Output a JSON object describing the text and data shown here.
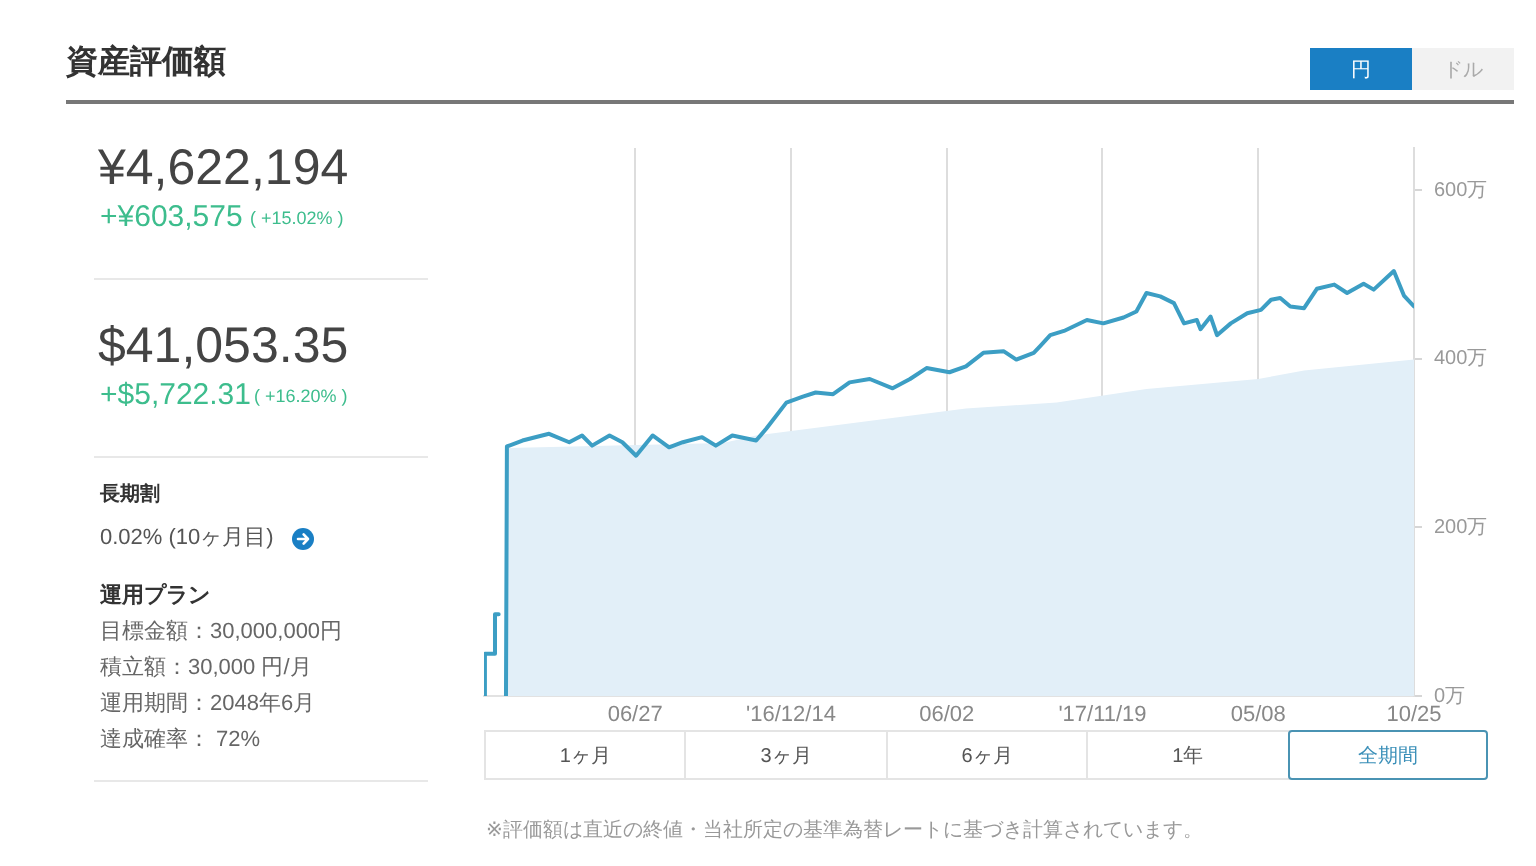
{
  "chart_data": {
    "type": "line",
    "title": "資産評価額",
    "xlim": [
      "2016-01-14",
      "2018-10-25"
    ],
    "xticks": [
      {
        "value": "2016-06-27",
        "label": "06/27"
      },
      {
        "value": "2016-12-14",
        "label": "'16/12/14"
      },
      {
        "value": "2017-06-02",
        "label": "06/02"
      },
      {
        "value": "2017-11-19",
        "label": "'17/11/19"
      },
      {
        "value": "2018-05-08",
        "label": "05/08"
      },
      {
        "value": "2018-10-25",
        "label": "10/25"
      }
    ],
    "ylim": [
      0,
      650
    ],
    "yticks": [
      {
        "value": 0,
        "label": "0万"
      },
      {
        "value": 200,
        "label": "200万"
      },
      {
        "value": 400,
        "label": "400万"
      },
      {
        "value": 600,
        "label": "600万"
      }
    ],
    "grid": "x",
    "series": [
      {
        "type": "area",
        "color": "#e2eff8",
        "x": [
          "2016-02-07",
          "2016-10-01",
          "2016-11-06",
          "2017-06-23",
          "2017-09-30",
          "2018-01-06",
          "2018-05-08",
          "2018-06-27",
          "2018-10-25"
        ],
        "values": [
          294,
          300,
          309,
          341,
          348,
          364,
          376,
          386,
          399
        ]
      },
      {
        "color": "#3c9ec4",
        "x": [
          "2016-01-14",
          "2016-01-15",
          "2016-01-25",
          "2016-01-26",
          "2016-01-30",
          "2016-02-03",
          "2016-02-07",
          "2016-02-08",
          "2016-02-25",
          "2016-03-25",
          "2016-04-16",
          "2016-04-30",
          "2016-05-11",
          "2016-05-30",
          "2016-06-13",
          "2016-06-28",
          "2016-07-16",
          "2016-08-03",
          "2016-08-18",
          "2016-09-08",
          "2016-09-23",
          "2016-10-11",
          "2016-11-06",
          "2016-11-17",
          "2016-12-09",
          "2016-12-27",
          "2017-01-10",
          "2017-01-29",
          "2017-02-16",
          "2017-03-10",
          "2017-04-04",
          "2017-04-23",
          "2017-05-11",
          "2017-06-05",
          "2017-06-23",
          "2017-07-12",
          "2017-08-03",
          "2017-08-17",
          "2017-09-05",
          "2017-09-12",
          "2017-09-23",
          "2017-10-08",
          "2017-11-02",
          "2017-11-20",
          "2017-12-12",
          "2017-12-26",
          "2018-01-06",
          "2018-01-21",
          "2018-02-05",
          "2018-02-16",
          "2018-03-02",
          "2018-03-06",
          "2018-03-17",
          "2018-03-24",
          "2018-04-08",
          "2018-04-26",
          "2018-05-11",
          "2018-05-22",
          "2018-06-01",
          "2018-06-12",
          "2018-06-27",
          "2018-07-11",
          "2018-07-30",
          "2018-08-13",
          "2018-08-31",
          "2018-09-11",
          "2018-10-03",
          "2018-10-14",
          "2018-10-25"
        ],
        "values": [
          0,
          50,
          50,
          97,
          97,
          null,
          0,
          296,
          303,
          311,
          301,
          309,
          297,
          309,
          301,
          285,
          309,
          295,
          301,
          307,
          297,
          309,
          303,
          317,
          348,
          355,
          360,
          358,
          372,
          376,
          365,
          376,
          389,
          384,
          391,
          407,
          409,
          399,
          407,
          415,
          428,
          433,
          446,
          442,
          449,
          456,
          478,
          474,
          466,
          442,
          446,
          435,
          450,
          428,
          442,
          454,
          458,
          470,
          472,
          462,
          460,
          483,
          488,
          478,
          489,
          482,
          504,
          475,
          462
        ]
      }
    ],
    "annotations": [
      "¥4,622,194",
      "+¥603,575",
      "( +15.02% )",
      "$41,053.35",
      "+$5,722.31",
      "( +16.20% )",
      "長期割",
      "0.02% (10ヶ月目)",
      "運用プラン",
      "目標金額：30,000,000円",
      "積立額：30,000 円/月",
      "運用期間：2048年6月",
      "達成確率： 72%",
      "円",
      "ドル",
      "1ヶ月",
      "3ヶ月",
      "6ヶ月",
      "1年",
      "全期間",
      "※評価額は直近の終値・当社所定の基準為替レートに基づき計算されています。"
    ]
  }
}
